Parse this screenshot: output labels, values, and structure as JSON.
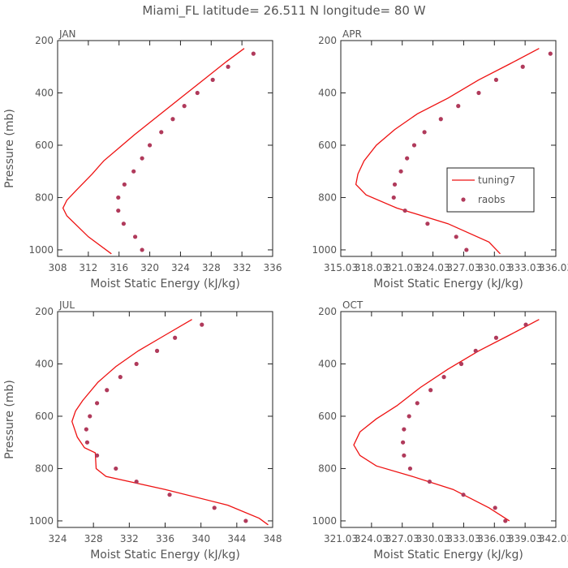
{
  "title": "Miami_FL   latitude= 26.511 N longitude= 80 W",
  "colors": {
    "model": "#ee1111",
    "obs": "#b03a5b",
    "axis": "#222222",
    "text": "#555555"
  },
  "chart_data": [
    {
      "type": "line",
      "panel_label": "JAN",
      "xlabel": "Moist Static Energy (kJ/kg)",
      "ylabel": "Pressure (mb)",
      "xlim": [
        308,
        336
      ],
      "ylim": [
        1025,
        200
      ],
      "xticks": [
        "308",
        "312",
        "316",
        "320",
        "324",
        "328",
        "332",
        "336"
      ],
      "yticks": [
        "200",
        "400",
        "600",
        "800",
        "1000"
      ],
      "series": [
        {
          "name": "tuning7",
          "kind": "line",
          "x": [
            332.3,
            330,
            327,
            324,
            321,
            318,
            316,
            314,
            312.5,
            310.5,
            309.2,
            308.7,
            309.2,
            312,
            315
          ],
          "y": [
            230,
            280,
            350,
            420,
            490,
            560,
            610,
            660,
            710,
            770,
            810,
            840,
            870,
            950,
            1015
          ]
        },
        {
          "name": "raobs",
          "kind": "scatter",
          "x": [
            333.5,
            330.2,
            328.2,
            326.2,
            324.5,
            323,
            321.5,
            320,
            319,
            317.9,
            316.7,
            315.9,
            315.9,
            316.6,
            318.1,
            319
          ],
          "y": [
            250,
            300,
            350,
            400,
            450,
            500,
            550,
            600,
            650,
            700,
            750,
            800,
            850,
            900,
            950,
            1000
          ]
        }
      ]
    },
    {
      "type": "line",
      "panel_label": "APR",
      "xlabel": "Moist Static Energy (kJ/kg)",
      "ylabel": "",
      "xlim": [
        315.03,
        336.03
      ],
      "ylim": [
        1025,
        200
      ],
      "xticks": [
        "315.03",
        "318.03",
        "321.03",
        "324.03",
        "327.03",
        "330.03",
        "333.03",
        "336.03"
      ],
      "yticks": [
        "200",
        "400",
        "600",
        "800",
        "1000"
      ],
      "legend": {
        "position": "right",
        "entries": [
          "tuning7",
          "raobs"
        ]
      },
      "series": [
        {
          "name": "tuning7",
          "kind": "line",
          "x": [
            334.4,
            331.5,
            328.5,
            325.5,
            322.5,
            320.3,
            318.5,
            317.3,
            316.7,
            316.5,
            317.5,
            320.5,
            325.5,
            329.5,
            330.6
          ],
          "y": [
            230,
            290,
            350,
            420,
            480,
            540,
            600,
            660,
            710,
            750,
            790,
            840,
            900,
            970,
            1015
          ]
        },
        {
          "name": "raobs",
          "kind": "scatter",
          "x": [
            335.5,
            332.8,
            330.2,
            328.5,
            326.5,
            324.8,
            323.2,
            322.2,
            321.5,
            320.9,
            320.3,
            320.2,
            321.3,
            323.5,
            326.3,
            327.3
          ],
          "y": [
            250,
            300,
            350,
            400,
            450,
            500,
            550,
            600,
            650,
            700,
            750,
            800,
            850,
            900,
            950,
            1000
          ]
        }
      ]
    },
    {
      "type": "line",
      "panel_label": "JUL",
      "xlabel": "Moist Static Energy (kJ/kg)",
      "ylabel": "Pressure (mb)",
      "xlim": [
        324,
        348
      ],
      "ylim": [
        1025,
        200
      ],
      "xticks": [
        "324",
        "328",
        "332",
        "336",
        "340",
        "344",
        "348"
      ],
      "yticks": [
        "200",
        "400",
        "600",
        "800",
        "1000"
      ],
      "series": [
        {
          "name": "tuning7",
          "kind": "line",
          "x": [
            339,
            336,
            333,
            330.5,
            328.5,
            326.8,
            326,
            325.6,
            326.2,
            327,
            328.2,
            328.3,
            329.4,
            336,
            343,
            346.5,
            347.5
          ],
          "y": [
            230,
            290,
            350,
            410,
            470,
            540,
            580,
            620,
            680,
            720,
            740,
            800,
            830,
            880,
            940,
            990,
            1015
          ]
        },
        {
          "name": "raobs",
          "kind": "scatter",
          "x": [
            340.1,
            337.1,
            335.1,
            332.8,
            331,
            329.5,
            328.4,
            327.6,
            327.2,
            327.3,
            328.4,
            330.5,
            332.8,
            336.5,
            341.5,
            345
          ],
          "y": [
            250,
            300,
            350,
            400,
            450,
            500,
            550,
            600,
            650,
            700,
            750,
            800,
            850,
            900,
            950,
            1000
          ]
        }
      ]
    },
    {
      "type": "line",
      "panel_label": "OCT",
      "xlabel": "Moist Static Energy (kJ/kg)",
      "ylabel": "",
      "xlim": [
        321.03,
        342.03
      ],
      "ylim": [
        1025,
        200
      ],
      "xticks": [
        "321.03",
        "324.03",
        "327.03",
        "330.03",
        "333.03",
        "336.03",
        "339.03",
        "342.03"
      ],
      "yticks": [
        "200",
        "400",
        "600",
        "800",
        "1000"
      ],
      "series": [
        {
          "name": "tuning7",
          "kind": "line",
          "x": [
            340.4,
            337.5,
            334.5,
            331.5,
            328.8,
            326.5,
            324.5,
            322.9,
            322.3,
            322.9,
            324.5,
            328,
            332,
            335.5,
            337.5
          ],
          "y": [
            230,
            290,
            350,
            420,
            490,
            560,
            610,
            660,
            710,
            750,
            790,
            830,
            880,
            950,
            1000
          ]
        },
        {
          "name": "raobs",
          "kind": "scatter",
          "x": [
            339.1,
            336.2,
            334.2,
            332.8,
            331.1,
            329.8,
            328.5,
            327.7,
            327.2,
            327.1,
            327.2,
            327.8,
            329.7,
            333,
            336.1,
            337.1
          ],
          "y": [
            250,
            300,
            350,
            400,
            450,
            500,
            550,
            600,
            650,
            700,
            750,
            800,
            850,
            900,
            950,
            1000
          ]
        }
      ]
    }
  ]
}
